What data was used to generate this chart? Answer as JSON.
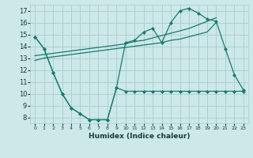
{
  "bg_color": "#cce8e8",
  "grid_color": "#aacccc",
  "line_color": "#1a7a6e",
  "xlabel": "Humidex (Indice chaleur)",
  "xlim": [
    -0.5,
    23.5
  ],
  "ylim": [
    7.5,
    17.5
  ],
  "yticks": [
    8,
    9,
    10,
    11,
    12,
    13,
    14,
    15,
    16,
    17
  ],
  "xtick_labels": [
    "0",
    "1",
    "2",
    "3",
    "4",
    "5",
    "6",
    "7",
    "8",
    "9",
    "10",
    "11",
    "12",
    "13",
    "14",
    "15",
    "16",
    "17",
    "18",
    "19",
    "20",
    "21",
    "22",
    "23"
  ],
  "line1_x": [
    0,
    1,
    2,
    3,
    4,
    5,
    6,
    7,
    8,
    9,
    10,
    11,
    12,
    13,
    14,
    15,
    16,
    17,
    18,
    19,
    20,
    21,
    22,
    23
  ],
  "line1_y": [
    14.8,
    13.8,
    11.8,
    10.0,
    8.8,
    8.3,
    7.8,
    7.8,
    7.8,
    10.5,
    10.2,
    10.2,
    10.2,
    10.2,
    10.2,
    10.2,
    10.2,
    10.2,
    10.2,
    10.2,
    10.2,
    10.2,
    10.2,
    10.2
  ],
  "line2_x": [
    0,
    1,
    2,
    3,
    4,
    5,
    6,
    7,
    8,
    9,
    10,
    11,
    12,
    13,
    14,
    15,
    16,
    17,
    18,
    19,
    20,
    21,
    22,
    23
  ],
  "line2_y": [
    14.8,
    13.8,
    11.8,
    10.0,
    8.8,
    8.3,
    7.8,
    7.8,
    7.8,
    10.5,
    14.3,
    14.5,
    15.2,
    15.5,
    14.3,
    16.0,
    17.0,
    17.2,
    16.8,
    16.3,
    16.1,
    13.8,
    11.6,
    10.3
  ],
  "line3_x": [
    0,
    1,
    2,
    3,
    4,
    5,
    6,
    7,
    8,
    9,
    10,
    11,
    12,
    13,
    14,
    15,
    16,
    17,
    18,
    19,
    20
  ],
  "line3_y": [
    12.8,
    13.0,
    13.1,
    13.2,
    13.3,
    13.4,
    13.5,
    13.6,
    13.7,
    13.8,
    13.9,
    14.0,
    14.1,
    14.2,
    14.3,
    14.5,
    14.6,
    14.8,
    15.0,
    15.2,
    16.0
  ],
  "line4_x": [
    0,
    1,
    2,
    3,
    4,
    5,
    6,
    7,
    8,
    9,
    10,
    11,
    12,
    13,
    14,
    15,
    16,
    17,
    18,
    19,
    20
  ],
  "line4_y": [
    13.2,
    13.3,
    13.4,
    13.5,
    13.6,
    13.7,
    13.8,
    13.9,
    14.0,
    14.1,
    14.2,
    14.4,
    14.5,
    14.7,
    14.9,
    15.1,
    15.3,
    15.5,
    15.8,
    16.1,
    16.4
  ]
}
